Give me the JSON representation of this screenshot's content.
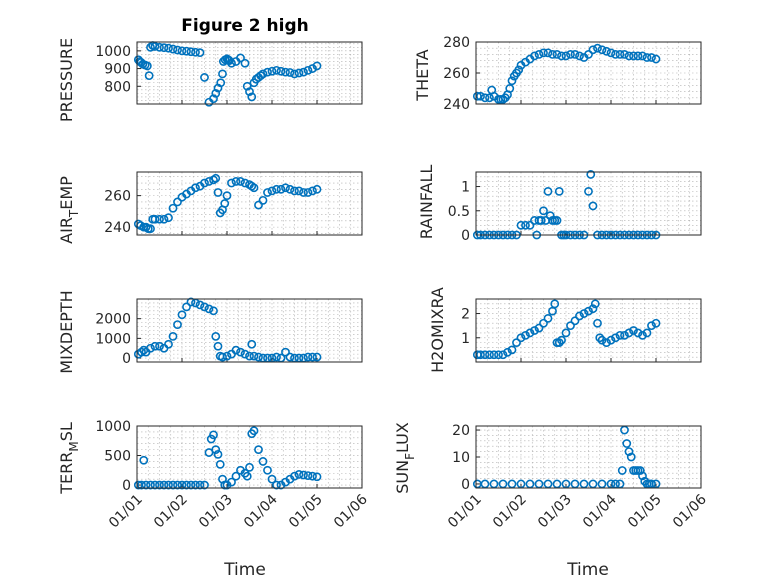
{
  "figure": {
    "title": "Figure 2 high",
    "marker_color": "#0072bd"
  },
  "chart_data": [
    {
      "type": "scatter",
      "ylabel": "PRESSURE",
      "xlabel": "",
      "xlim": [
        0,
        5
      ],
      "ylim": [
        700,
        1050
      ],
      "yticks": [
        800,
        900,
        1000
      ],
      "xticks": [],
      "x": [
        0.03,
        0.06,
        0.09,
        0.13,
        0.18,
        0.23,
        0.27,
        0.3,
        0.35,
        0.4,
        0.5,
        0.6,
        0.7,
        0.8,
        0.9,
        1.0,
        1.1,
        1.2,
        1.3,
        1.4,
        1.5,
        1.6,
        1.7,
        1.75,
        1.8,
        1.86,
        1.9,
        1.92,
        1.96,
        2.0,
        2.03,
        2.05,
        2.1,
        2.2,
        2.3,
        2.4,
        2.45,
        2.5,
        2.55,
        2.6,
        2.65,
        2.7,
        2.75,
        2.8,
        2.9,
        3.0,
        3.1,
        3.2,
        3.3,
        3.4,
        3.5,
        3.6,
        3.7,
        3.8,
        3.9,
        4.0
      ],
      "y": [
        950,
        940,
        935,
        925,
        920,
        915,
        860,
        1020,
        1030,
        1025,
        1020,
        1018,
        1015,
        1010,
        1005,
        1000,
        998,
        995,
        992,
        990,
        850,
        710,
        730,
        760,
        790,
        820,
        870,
        940,
        950,
        955,
        950,
        945,
        930,
        940,
        960,
        930,
        800,
        770,
        740,
        820,
        840,
        850,
        860,
        870,
        880,
        885,
        890,
        885,
        880,
        878,
        870,
        875,
        880,
        890,
        900,
        915
      ]
    },
    {
      "type": "scatter",
      "ylabel": "THETA",
      "xlabel": "",
      "xlim": [
        0,
        5
      ],
      "ylim": [
        240,
        280
      ],
      "yticks": [
        240,
        260,
        280
      ],
      "xticks": [],
      "x": [
        0.03,
        0.1,
        0.2,
        0.3,
        0.35,
        0.4,
        0.5,
        0.55,
        0.6,
        0.65,
        0.7,
        0.75,
        0.8,
        0.85,
        0.9,
        0.95,
        1.0,
        1.1,
        1.2,
        1.3,
        1.4,
        1.5,
        1.6,
        1.7,
        1.8,
        1.9,
        2.0,
        2.1,
        2.2,
        2.3,
        2.4,
        2.5,
        2.6,
        2.7,
        2.8,
        2.9,
        3.0,
        3.1,
        3.2,
        3.3,
        3.4,
        3.5,
        3.6,
        3.7,
        3.8,
        3.9,
        4.0
      ],
      "y": [
        245,
        245,
        244,
        244,
        249,
        245,
        243,
        243,
        243,
        244,
        246,
        250,
        255,
        258,
        260,
        262,
        265,
        267,
        269,
        271,
        272,
        273,
        273,
        272,
        272,
        271,
        271,
        272,
        272,
        271,
        270,
        272,
        275,
        276,
        275,
        274,
        273,
        272,
        272,
        272,
        271,
        271,
        271,
        271,
        270,
        270,
        269
      ]
    },
    {
      "type": "scatter",
      "ylabel": "AIR_TEMP",
      "xlabel": "",
      "xlim": [
        0,
        5
      ],
      "ylim": [
        235,
        275
      ],
      "yticks": [
        240,
        260
      ],
      "xticks": [],
      "x": [
        0.03,
        0.08,
        0.15,
        0.2,
        0.25,
        0.3,
        0.35,
        0.4,
        0.5,
        0.6,
        0.7,
        0.8,
        0.9,
        1.0,
        1.1,
        1.2,
        1.3,
        1.4,
        1.5,
        1.6,
        1.7,
        1.75,
        1.8,
        1.85,
        1.9,
        1.95,
        2.0,
        2.1,
        2.2,
        2.3,
        2.4,
        2.5,
        2.55,
        2.6,
        2.7,
        2.8,
        2.9,
        3.0,
        3.1,
        3.2,
        3.3,
        3.4,
        3.5,
        3.6,
        3.7,
        3.8,
        3.9,
        4.0
      ],
      "y": [
        242,
        241,
        240,
        240,
        239,
        239,
        245,
        245,
        245,
        245,
        246,
        252,
        256,
        259,
        261,
        263,
        265,
        266,
        268,
        269,
        270,
        271,
        262,
        249,
        251,
        255,
        260,
        268,
        269,
        269,
        268,
        267,
        266,
        265,
        254,
        257,
        262,
        263,
        264,
        264,
        265,
        264,
        263,
        263,
        262,
        262,
        263,
        264
      ]
    },
    {
      "type": "scatter",
      "ylabel": "RAINFALL",
      "xlabel": "",
      "xlim": [
        0,
        5
      ],
      "ylim": [
        0,
        1.3
      ],
      "yticks": [
        0,
        0.5,
        1
      ],
      "ytick_labels": [
        "0",
        "0.5",
        "1"
      ],
      "xticks": [],
      "x": [
        0.03,
        0.1,
        0.2,
        0.3,
        0.4,
        0.5,
        0.6,
        0.7,
        0.8,
        0.9,
        1.0,
        1.1,
        1.2,
        1.3,
        1.35,
        1.4,
        1.45,
        1.5,
        1.55,
        1.6,
        1.65,
        1.7,
        1.75,
        1.8,
        1.85,
        1.9,
        1.95,
        2.0,
        2.1,
        2.2,
        2.3,
        2.4,
        2.5,
        2.55,
        2.6,
        2.7,
        2.8,
        2.9,
        3.0,
        3.1,
        3.2,
        3.3,
        3.4,
        3.5,
        3.6,
        3.7,
        3.8,
        3.9,
        4.0
      ],
      "y": [
        0,
        0,
        0,
        0,
        0,
        0,
        0,
        0,
        0,
        0,
        0.2,
        0.2,
        0.2,
        0.3,
        0,
        0.3,
        0.3,
        0.5,
        0.3,
        0.9,
        0.4,
        0.3,
        0.3,
        0.3,
        0.9,
        0,
        0,
        0,
        0,
        0,
        0,
        0,
        0.9,
        1.25,
        0.6,
        0,
        0,
        0,
        0,
        0,
        0,
        0,
        0,
        0,
        0,
        0,
        0,
        0,
        0
      ]
    },
    {
      "type": "scatter",
      "ylabel": "MIXDEPTH",
      "xlabel": "",
      "xlim": [
        0,
        5
      ],
      "ylim": [
        -200,
        3000
      ],
      "yticks": [
        0,
        1000,
        2000
      ],
      "xticks": [],
      "x": [
        0.03,
        0.1,
        0.15,
        0.2,
        0.3,
        0.4,
        0.5,
        0.6,
        0.7,
        0.8,
        0.9,
        1.0,
        1.1,
        1.2,
        1.3,
        1.4,
        1.5,
        1.6,
        1.7,
        1.75,
        1.8,
        1.85,
        1.9,
        2.0,
        2.1,
        2.2,
        2.3,
        2.4,
        2.5,
        2.55,
        2.6,
        2.7,
        2.8,
        2.9,
        3.0,
        3.1,
        3.2,
        3.3,
        3.4,
        3.5,
        3.6,
        3.7,
        3.8,
        3.9,
        4.0
      ],
      "y": [
        200,
        300,
        400,
        300,
        500,
        600,
        600,
        500,
        700,
        1100,
        1700,
        2200,
        2600,
        2850,
        2800,
        2700,
        2600,
        2500,
        2400,
        1100,
        600,
        100,
        50,
        100,
        200,
        400,
        300,
        200,
        100,
        700,
        100,
        50,
        0,
        0,
        0,
        50,
        0,
        300,
        50,
        0,
        0,
        0,
        50,
        50,
        50
      ]
    },
    {
      "type": "scatter",
      "ylabel": "H2OMIXRA",
      "xlabel": "",
      "xlim": [
        0,
        5
      ],
      "ylim": [
        0,
        2.6
      ],
      "yticks": [
        1,
        2
      ],
      "xticks": [],
      "x": [
        0.03,
        0.1,
        0.2,
        0.3,
        0.4,
        0.5,
        0.6,
        0.7,
        0.8,
        0.9,
        1.0,
        1.1,
        1.2,
        1.3,
        1.4,
        1.5,
        1.6,
        1.7,
        1.75,
        1.8,
        1.85,
        1.9,
        2.0,
        2.1,
        2.2,
        2.3,
        2.4,
        2.5,
        2.6,
        2.65,
        2.7,
        2.75,
        2.8,
        2.9,
        3.0,
        3.1,
        3.2,
        3.3,
        3.4,
        3.5,
        3.6,
        3.7,
        3.8,
        3.9,
        4.0
      ],
      "y": [
        0.3,
        0.3,
        0.3,
        0.3,
        0.3,
        0.3,
        0.3,
        0.4,
        0.5,
        0.8,
        1.0,
        1.1,
        1.2,
        1.3,
        1.4,
        1.6,
        1.8,
        2.1,
        2.4,
        0.8,
        0.8,
        0.9,
        1.2,
        1.5,
        1.7,
        1.9,
        2.0,
        2.1,
        2.2,
        2.4,
        1.6,
        1.0,
        0.9,
        0.8,
        0.9,
        1.0,
        1.1,
        1.1,
        1.2,
        1.3,
        1.2,
        1.1,
        1.2,
        1.5,
        1.6
      ]
    },
    {
      "type": "scatter",
      "ylabel": "TERR_MSL",
      "xlabel": "Time",
      "xlim": [
        0,
        5
      ],
      "ylim": [
        -50,
        1000
      ],
      "yticks": [
        0,
        500,
        1000
      ],
      "xticks": [
        0,
        1,
        2,
        3,
        4,
        5
      ],
      "xtick_labels": [
        "01/01",
        "01/02",
        "01/03",
        "01/04",
        "01/05",
        "01/06"
      ],
      "x": [
        0.03,
        0.1,
        0.15,
        0.2,
        0.3,
        0.4,
        0.5,
        0.6,
        0.7,
        0.8,
        0.9,
        1.0,
        1.1,
        1.2,
        1.3,
        1.4,
        1.5,
        1.6,
        1.65,
        1.7,
        1.75,
        1.8,
        1.85,
        1.9,
        1.95,
        2.0,
        2.1,
        2.2,
        2.3,
        2.4,
        2.45,
        2.5,
        2.55,
        2.6,
        2.7,
        2.8,
        2.9,
        3.0,
        3.1,
        3.2,
        3.3,
        3.4,
        3.5,
        3.6,
        3.7,
        3.8,
        3.9,
        4.0
      ],
      "y": [
        0,
        0,
        420,
        0,
        0,
        0,
        0,
        0,
        0,
        0,
        0,
        0,
        0,
        0,
        0,
        0,
        0,
        550,
        780,
        850,
        600,
        520,
        350,
        100,
        0,
        0,
        50,
        150,
        250,
        200,
        150,
        300,
        870,
        920,
        600,
        400,
        250,
        100,
        0,
        0,
        50,
        100,
        150,
        180,
        170,
        160,
        150,
        140
      ]
    },
    {
      "type": "scatter",
      "ylabel": "SUN_FLUX",
      "xlabel": "Time",
      "xlim": [
        0,
        5
      ],
      "ylim": [
        -1.5,
        21.5
      ],
      "yticks": [
        0,
        10,
        20
      ],
      "xticks": [
        0,
        1,
        2,
        3,
        4,
        5
      ],
      "xtick_labels": [
        "01/01",
        "01/02",
        "01/03",
        "01/04",
        "01/05",
        "01/06"
      ],
      "x": [
        0.03,
        0.2,
        0.4,
        0.6,
        0.8,
        1.0,
        1.2,
        1.4,
        1.6,
        1.8,
        2.0,
        2.2,
        2.4,
        2.6,
        2.8,
        3.0,
        3.1,
        3.2,
        3.25,
        3.3,
        3.35,
        3.4,
        3.45,
        3.5,
        3.55,
        3.6,
        3.65,
        3.7,
        3.75,
        3.8,
        3.85,
        3.9,
        4.0
      ],
      "y": [
        0,
        0,
        0,
        0,
        0,
        0,
        0,
        0,
        0,
        0,
        0,
        0,
        0,
        0,
        0,
        0,
        0,
        0,
        5,
        20,
        15,
        12,
        10,
        5,
        5,
        5,
        5,
        3,
        1,
        0,
        0,
        0,
        0
      ]
    }
  ]
}
